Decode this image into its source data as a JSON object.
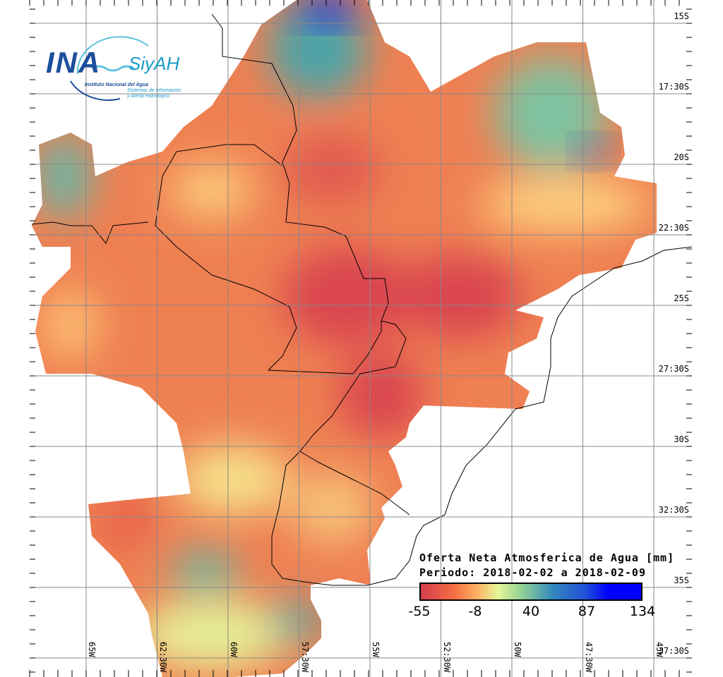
{
  "logo": {
    "ina": "INA",
    "siyah": "SiyAH",
    "institute": "Instituto Nacional del Agua",
    "system_line1": "Sistemas de información",
    "system_line2": "y Alerta Hidrológico"
  },
  "legend": {
    "title": "Oferta Neta Atmosferica de Agua [mm]",
    "period": "Periodo: 2018-02-02 a 2018-02-09",
    "ticks": [
      "-55",
      "-8",
      "40",
      "87",
      "134"
    ],
    "colors": [
      "#d53e4f",
      "#f46d43",
      "#fdae61",
      "#e6f598",
      "#99d594",
      "#3288bd",
      "#0000ff"
    ]
  },
  "axes": {
    "lat_labels": [
      "15S",
      "17:30S",
      "20S",
      "22:30S",
      "25S",
      "27:30S",
      "30S",
      "32:30S",
      "35S",
      "37:30S"
    ],
    "lon_labels": [
      "65W",
      "62:30W",
      "60W",
      "57:30W",
      "55W",
      "52:30W",
      "50W",
      "47:30W",
      "45W"
    ]
  }
}
